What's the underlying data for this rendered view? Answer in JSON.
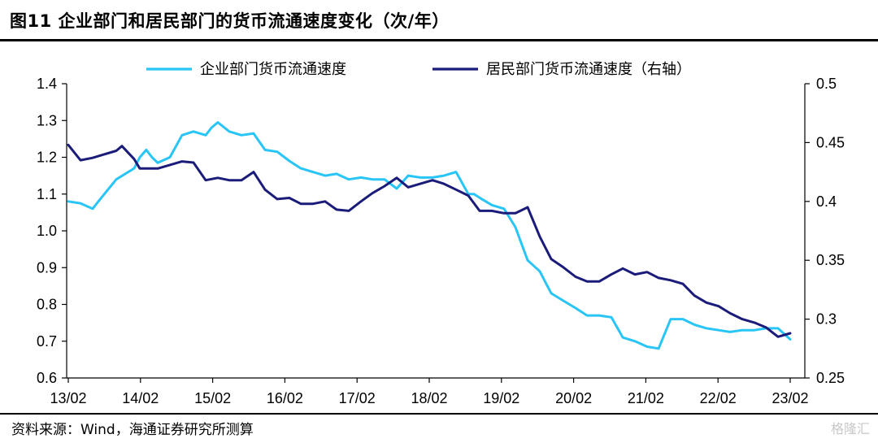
{
  "header": {
    "title": "图11 企业部门和居民部门的货币流通速度变化（次/年）"
  },
  "footer": {
    "source": "资料来源：Wind，海通证券研究所测算",
    "watermark": "格隆汇"
  },
  "colors": {
    "corporate": "#29C5F6",
    "household": "#1B1C7A",
    "axis": "#000000"
  },
  "chart_data": {
    "type": "line",
    "title": "",
    "x_tick_labels": [
      "13/02",
      "14/02",
      "15/02",
      "16/02",
      "17/02",
      "18/02",
      "19/02",
      "20/02",
      "21/02",
      "22/02",
      "23/02"
    ],
    "y_left": {
      "ticks": [
        "1.4",
        "1.3",
        "1.2",
        "1.1",
        "1.0",
        "0.9",
        "0.8",
        "0.7",
        "0.6"
      ],
      "ylim": [
        0.6,
        1.4
      ]
    },
    "y_right": {
      "ticks": [
        "0.5",
        "0.45",
        "0.4",
        "0.35",
        "0.3",
        "0.25"
      ],
      "ylim": [
        0.25,
        0.5
      ]
    },
    "legend_position": "top-center",
    "series": [
      {
        "name": "企业部门货币流通速度",
        "axis": "left",
        "x": [
          2013.08,
          2013.25,
          2013.42,
          2013.5,
          2013.75,
          2014.0,
          2014.08,
          2014.17,
          2014.25,
          2014.33,
          2014.5,
          2014.67,
          2014.83,
          2015.0,
          2015.08,
          2015.17,
          2015.33,
          2015.5,
          2015.67,
          2015.83,
          2016.0,
          2016.17,
          2016.33,
          2016.5,
          2016.67,
          2016.83,
          2017.0,
          2017.17,
          2017.33,
          2017.5,
          2017.67,
          2017.83,
          2018.0,
          2018.17,
          2018.33,
          2018.5,
          2018.67,
          2018.75,
          2018.83,
          2019.0,
          2019.17,
          2019.33,
          2019.5,
          2019.67,
          2019.75,
          2019.83,
          2020.0,
          2020.17,
          2020.33,
          2020.5,
          2020.67,
          2020.83,
          2021.0,
          2021.17,
          2021.33,
          2021.5,
          2021.67,
          2021.83,
          2022.0,
          2022.17,
          2022.33,
          2022.5,
          2022.67,
          2022.83,
          2023.0,
          2023.17
        ],
        "values": [
          1.08,
          1.075,
          1.06,
          1.08,
          1.14,
          1.17,
          1.2,
          1.22,
          1.2,
          1.185,
          1.2,
          1.26,
          1.27,
          1.26,
          1.28,
          1.295,
          1.27,
          1.26,
          1.265,
          1.22,
          1.215,
          1.19,
          1.17,
          1.16,
          1.15,
          1.155,
          1.14,
          1.145,
          1.14,
          1.14,
          1.115,
          1.15,
          1.145,
          1.145,
          1.15,
          1.16,
          1.1,
          1.1,
          1.09,
          1.07,
          1.06,
          1.01,
          0.92,
          0.89,
          0.86,
          0.83,
          0.81,
          0.79,
          0.77,
          0.77,
          0.765,
          0.71,
          0.7,
          0.685,
          0.68,
          0.76,
          0.76,
          0.745,
          0.735,
          0.73,
          0.725,
          0.73,
          0.73,
          0.735,
          0.735,
          0.705
        ]
      },
      {
        "name": "居民部门货币流通速度（右轴）",
        "axis": "right",
        "x": [
          2013.08,
          2013.25,
          2013.42,
          2013.58,
          2013.75,
          2013.83,
          2014.0,
          2014.08,
          2014.17,
          2014.33,
          2014.5,
          2014.67,
          2014.83,
          2015.0,
          2015.17,
          2015.33,
          2015.5,
          2015.67,
          2015.83,
          2016.0,
          2016.17,
          2016.33,
          2016.5,
          2016.67,
          2016.83,
          2017.0,
          2017.17,
          2017.33,
          2017.5,
          2017.67,
          2017.83,
          2018.0,
          2018.17,
          2018.33,
          2018.5,
          2018.67,
          2018.83,
          2019.0,
          2019.17,
          2019.33,
          2019.5,
          2019.67,
          2019.83,
          2020.0,
          2020.17,
          2020.33,
          2020.5,
          2020.67,
          2020.83,
          2021.0,
          2021.17,
          2021.33,
          2021.5,
          2021.67,
          2021.83,
          2022.0,
          2022.17,
          2022.33,
          2022.5,
          2022.67,
          2022.83,
          2023.0,
          2023.17
        ],
        "values": [
          0.448,
          0.435,
          0.437,
          0.44,
          0.443,
          0.447,
          0.436,
          0.428,
          0.428,
          0.428,
          0.431,
          0.434,
          0.433,
          0.418,
          0.42,
          0.418,
          0.418,
          0.425,
          0.41,
          0.402,
          0.403,
          0.398,
          0.398,
          0.4,
          0.393,
          0.392,
          0.4,
          0.407,
          0.413,
          0.42,
          0.412,
          0.415,
          0.418,
          0.415,
          0.41,
          0.405,
          0.392,
          0.392,
          0.39,
          0.39,
          0.395,
          0.37,
          0.351,
          0.344,
          0.336,
          0.332,
          0.332,
          0.338,
          0.343,
          0.338,
          0.34,
          0.335,
          0.333,
          0.33,
          0.32,
          0.314,
          0.311,
          0.305,
          0.3,
          0.297,
          0.293,
          0.285,
          0.288
        ]
      }
    ]
  }
}
